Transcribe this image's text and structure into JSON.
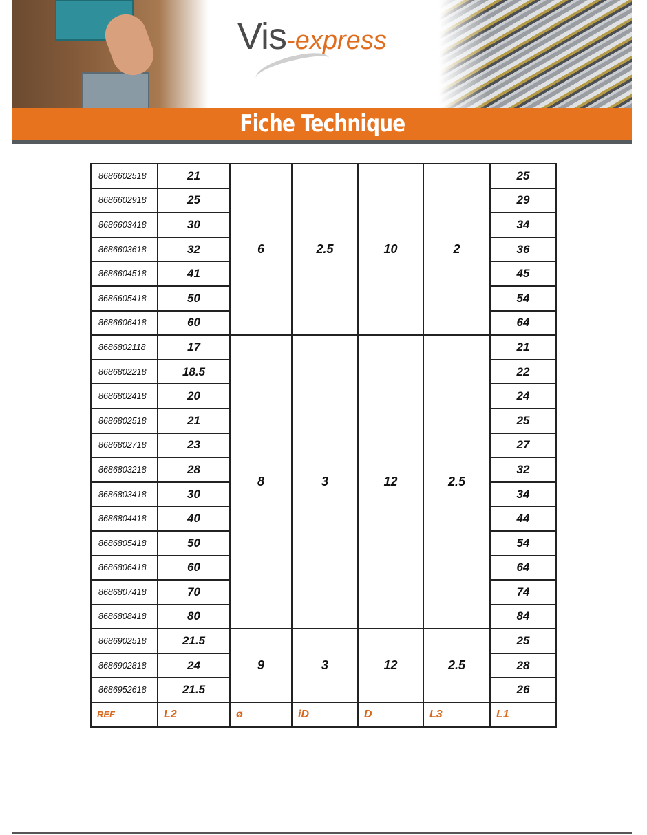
{
  "header": {
    "logo_main": "Vis",
    "logo_suffix": "-express",
    "title": "Fiche Technique",
    "brand_color": "#e8731f"
  },
  "table": {
    "columns": [
      "REF",
      "L2",
      "ø",
      "iD",
      "D",
      "L3",
      "L1"
    ],
    "groups": [
      {
        "diameter": "6",
        "iD": "2.5",
        "D": "10",
        "L3": "2",
        "rows": [
          {
            "ref": "8686602518",
            "L2": "21",
            "L1": "25"
          },
          {
            "ref": "8686602918",
            "L2": "25",
            "L1": "29"
          },
          {
            "ref": "8686603418",
            "L2": "30",
            "L1": "34"
          },
          {
            "ref": "8686603618",
            "L2": "32",
            "L1": "36"
          },
          {
            "ref": "8686604518",
            "L2": "41",
            "L1": "45"
          },
          {
            "ref": "8686605418",
            "L2": "50",
            "L1": "54"
          },
          {
            "ref": "8686606418",
            "L2": "60",
            "L1": "64"
          }
        ]
      },
      {
        "diameter": "8",
        "iD": "3",
        "D": "12",
        "L3": "2.5",
        "rows": [
          {
            "ref": "8686802118",
            "L2": "17",
            "L1": "21"
          },
          {
            "ref": "8686802218",
            "L2": "18.5",
            "L1": "22"
          },
          {
            "ref": "8686802418",
            "L2": "20",
            "L1": "24"
          },
          {
            "ref": "8686802518",
            "L2": "21",
            "L1": "25"
          },
          {
            "ref": "8686802718",
            "L2": "23",
            "L1": "27"
          },
          {
            "ref": "8686803218",
            "L2": "28",
            "L1": "32"
          },
          {
            "ref": "8686803418",
            "L2": "30",
            "L1": "34"
          },
          {
            "ref": "8686804418",
            "L2": "40",
            "L1": "44"
          },
          {
            "ref": "8686805418",
            "L2": "50",
            "L1": "54"
          },
          {
            "ref": "8686806418",
            "L2": "60",
            "L1": "64"
          },
          {
            "ref": "8686807418",
            "L2": "70",
            "L1": "74"
          },
          {
            "ref": "8686808418",
            "L2": "80",
            "L1": "84"
          }
        ]
      },
      {
        "diameter": "9",
        "iD": "3",
        "D": "12",
        "L3": "2.5",
        "rows": [
          {
            "ref": "8686902518",
            "L2": "21.5",
            "L1": "25"
          },
          {
            "ref": "8686902818",
            "L2": "24",
            "L1": "28"
          },
          {
            "ref": "8686952618",
            "L2": "21.5",
            "L1": "26"
          }
        ]
      }
    ]
  }
}
